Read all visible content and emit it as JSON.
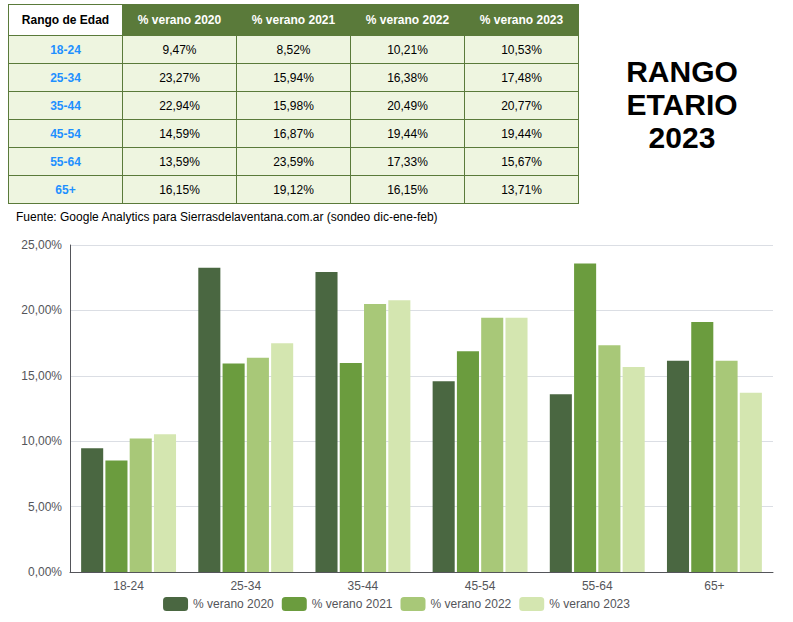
{
  "chart_data": {
    "type": "bar",
    "categories": [
      "18-24",
      "25-34",
      "35-44",
      "45-54",
      "55-64",
      "65+"
    ],
    "series": [
      {
        "name": "% verano 2020",
        "color": "#4a6741",
        "values": [
          0.0947,
          0.2327,
          0.2294,
          0.1459,
          0.1359,
          0.1615
        ]
      },
      {
        "name": "% verano 2021",
        "color": "#6b9c3e",
        "values": [
          0.0852,
          0.1594,
          0.1598,
          0.1687,
          0.2359,
          0.1912
        ]
      },
      {
        "name": "% verano 2022",
        "color": "#a8c878",
        "values": [
          0.1021,
          0.1638,
          0.2049,
          0.1944,
          0.1733,
          0.1615
        ]
      },
      {
        "name": "% verano 2023",
        "color": "#d4e6b0",
        "values": [
          0.1053,
          0.1748,
          0.2077,
          0.1944,
          0.1567,
          0.1371
        ]
      }
    ],
    "ylim": [
      0,
      0.25
    ],
    "yticks": [
      {
        "value": 0.0,
        "label": "0,00%"
      },
      {
        "value": 0.05,
        "label": "5,00%"
      },
      {
        "value": 0.1,
        "label": "10,00%"
      },
      {
        "value": 0.15,
        "label": "15,00%"
      },
      {
        "value": 0.2,
        "label": "20,00%"
      },
      {
        "value": 0.25,
        "label": "25,00%"
      }
    ],
    "grid": true,
    "legend": "bottom",
    "annotations": [
      "RANGO\nETARIO\n2023",
      "Fuente: Google Analytics para Sierrasdelaventana.com.ar    (sondeo dic-ene-feb)"
    ],
    "table": {
      "header": [
        "Rango de Edad",
        "% verano 2020",
        "% verano 2021",
        "% verano 2022",
        "% verano 2023"
      ],
      "rows": [
        [
          "18-24",
          "9,47%",
          "8,52%",
          "10,21%",
          "10,53%"
        ],
        [
          "25-34",
          "23,27%",
          "15,94%",
          "16,38%",
          "17,48%"
        ],
        [
          "35-44",
          "22,94%",
          "15,98%",
          "20,49%",
          "20,77%"
        ],
        [
          "45-54",
          "14,59%",
          "16,87%",
          "19,44%",
          "19,44%"
        ],
        [
          "55-64",
          "13,59%",
          "23,59%",
          "17,33%",
          "15,67%"
        ],
        [
          "65+",
          "16,15%",
          "19,12%",
          "16,15%",
          "13,71%"
        ]
      ]
    }
  }
}
